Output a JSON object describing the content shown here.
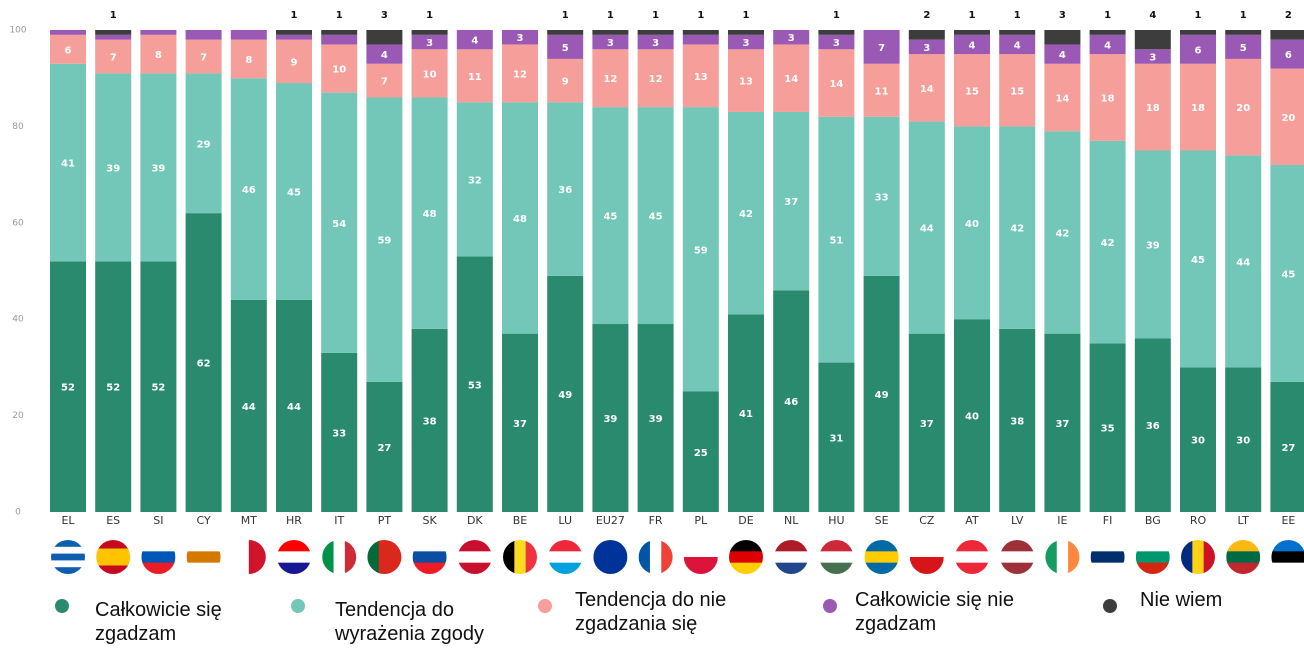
{
  "chart_data": {
    "type": "stacked_bar",
    "categories": [
      "EL",
      "ES",
      "SI",
      "CY",
      "MT",
      "HR",
      "IT",
      "PT",
      "SK",
      "DK",
      "BE",
      "LU",
      "EU27",
      "FR",
      "PL",
      "DE",
      "NL",
      "HU",
      "SE",
      "CZ",
      "AT",
      "LV",
      "IE",
      "FI",
      "BG",
      "RO",
      "LT",
      "EE"
    ],
    "ylim": [
      0,
      100
    ],
    "yticks": [
      0,
      20,
      40,
      60,
      80,
      100
    ],
    "grid": false,
    "series": [
      {
        "name": "Całkowicie się zgadzam",
        "color": "#2a8a6e",
        "values": [
          52,
          52,
          52,
          62,
          44,
          44,
          33,
          27,
          38,
          53,
          37,
          49,
          39,
          39,
          25,
          41,
          46,
          31,
          49,
          37,
          40,
          38,
          37,
          35,
          36,
          30,
          30,
          27
        ]
      },
      {
        "name": "Tendencja do wyrażenia zgody",
        "color": "#72c7b8",
        "values": [
          41,
          39,
          39,
          29,
          46,
          45,
          54,
          59,
          48,
          32,
          48,
          36,
          45,
          45,
          59,
          42,
          37,
          51,
          33,
          44,
          40,
          42,
          42,
          42,
          39,
          45,
          44,
          45
        ]
      },
      {
        "name": "Tendencja do nie zgadzania się",
        "color": "#f59e9a",
        "values": [
          6,
          7,
          8,
          7,
          8,
          9,
          10,
          7,
          10,
          11,
          12,
          9,
          12,
          12,
          13,
          13,
          14,
          14,
          11,
          14,
          15,
          15,
          14,
          18,
          18,
          18,
          20,
          20
        ]
      },
      {
        "name": "Całkowicie się nie zgadzam",
        "color": "#9b59b6",
        "values": [
          1,
          1,
          1,
          2,
          2,
          1,
          2,
          4,
          3,
          4,
          3,
          5,
          3,
          3,
          2,
          3,
          3,
          3,
          7,
          3,
          4,
          4,
          4,
          4,
          3,
          6,
          5,
          6
        ],
        "value_labels": [
          null,
          null,
          null,
          null,
          null,
          null,
          null,
          "4",
          "3",
          "4",
          "3",
          "5",
          "3",
          "3",
          null,
          "3",
          "3",
          "3",
          "7",
          "3",
          "4",
          "4",
          "4",
          "4",
          "3",
          "6",
          "5",
          "6"
        ]
      },
      {
        "name": "Nie wiem",
        "color": "#3d3d3d",
        "values": [
          0,
          1,
          0,
          0,
          0,
          1,
          1,
          3,
          1,
          0,
          0,
          1,
          1,
          1,
          1,
          1,
          0,
          1,
          0,
          2,
          1,
          1,
          3,
          1,
          4,
          1,
          1,
          2
        ],
        "value_labels": [
          null,
          "1",
          null,
          null,
          null,
          "1",
          "1",
          "3",
          "1",
          null,
          null,
          "1",
          "1",
          "1",
          "1",
          "1",
          null,
          "1",
          null,
          "2",
          "1",
          "1",
          "3",
          "1",
          "4",
          "1",
          "1",
          "2"
        ]
      }
    ]
  }
}
